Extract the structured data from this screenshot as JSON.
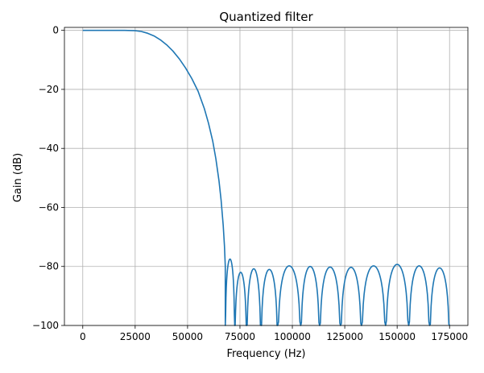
{
  "chart_data": {
    "type": "line",
    "title": "Quantized filter",
    "xlabel": "Frequency (Hz)",
    "ylabel": "Gain (dB)",
    "xlim": [
      -8750,
      183750
    ],
    "ylim": [
      -100,
      1
    ],
    "grid": true,
    "xticks": [
      0,
      25000,
      50000,
      75000,
      100000,
      125000,
      150000,
      175000
    ],
    "yticks": [
      0,
      -20,
      -40,
      -60,
      -80,
      -100
    ],
    "xtick_labels": [
      "0",
      "25000",
      "50000",
      "75000",
      "100000",
      "125000",
      "150000",
      "175000"
    ],
    "ytick_labels": [
      "0",
      "−20",
      "−40",
      "−60",
      "−80",
      "−100"
    ],
    "series": [
      {
        "color": "#1f77b4",
        "passband": {
          "x": [
            0,
            20000,
            25000,
            28000,
            31000,
            34000,
            37000,
            40000,
            43000,
            46000,
            49000,
            52000,
            55000,
            58000,
            60000,
            62000,
            63500,
            65000,
            66000,
            67000,
            67600,
            68000
          ],
          "y": [
            0,
            0,
            -0.1,
            -0.4,
            -1.0,
            -1.9,
            -3.2,
            -4.9,
            -7.0,
            -9.6,
            -12.7,
            -16.3,
            -20.6,
            -26.5,
            -31.5,
            -37.5,
            -43.5,
            -51.0,
            -57.5,
            -66.0,
            -73.0,
            -80.0
          ]
        },
        "stopband_peaks": [
          {
            "x": 70000,
            "y": -77.5
          },
          {
            "x": 75200,
            "y": -82.0
          },
          {
            "x": 81500,
            "y": -80.8
          },
          {
            "x": 88800,
            "y": -81.0
          },
          {
            "x": 99000,
            "y": -79.8
          },
          {
            "x": 108000,
            "y": -80.0
          },
          {
            "x": 118000,
            "y": -80.2
          },
          {
            "x": 128000,
            "y": -80.3
          },
          {
            "x": 139000,
            "y": -79.8
          },
          {
            "x": 150000,
            "y": -79.3
          },
          {
            "x": 160500,
            "y": -79.8
          },
          {
            "x": 170500,
            "y": -80.5
          }
        ],
        "stopband_nulls_x": [
          68000,
          72500,
          78200,
          85000,
          93000,
          104000,
          113000,
          123000,
          133000,
          144500,
          155500,
          165500,
          175000
        ]
      }
    ]
  }
}
